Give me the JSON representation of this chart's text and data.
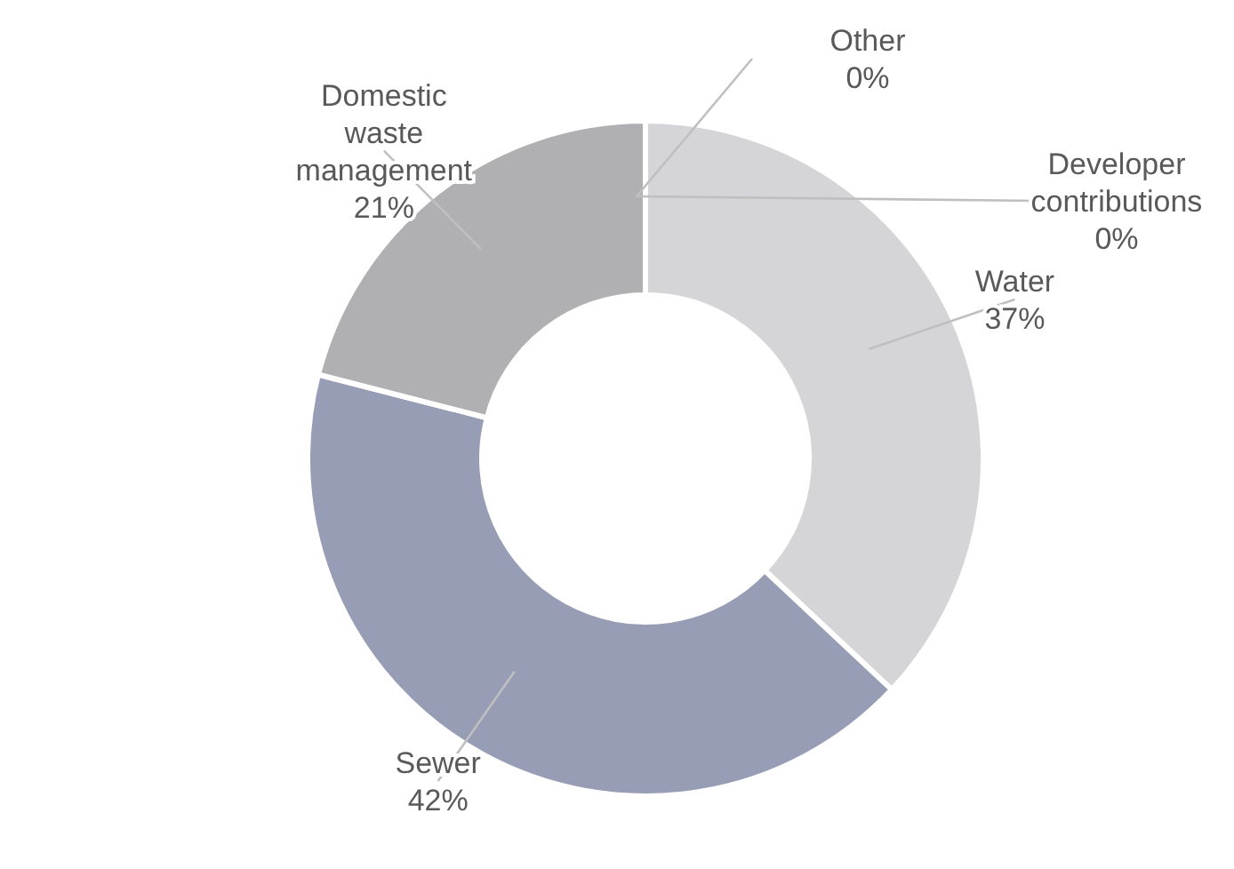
{
  "chart_data": {
    "type": "donut",
    "categories": [
      "Developer contributions",
      "Water",
      "Sewer",
      "Domestic waste management",
      "Other"
    ],
    "values": [
      0,
      37,
      42,
      21,
      0
    ],
    "value_labels": [
      "0%",
      "37%",
      "42%",
      "21%",
      "0%"
    ],
    "colors": [
      "#44546a",
      "#d5d5d8",
      "#979db5",
      "#b0b0b3",
      "#2f3f6a"
    ]
  }
}
